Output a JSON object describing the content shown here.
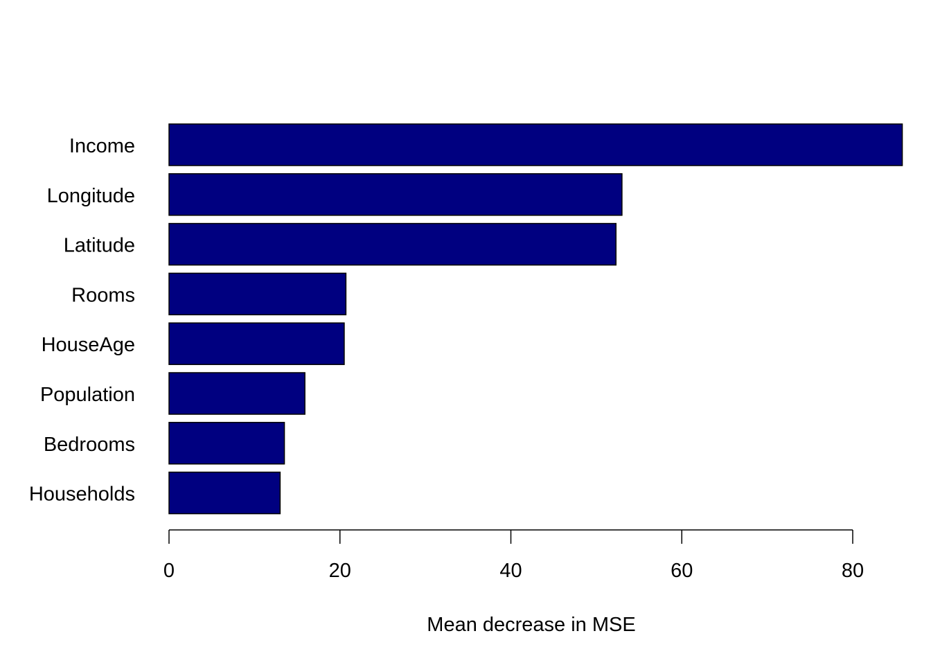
{
  "chart_data": {
    "type": "bar",
    "orientation": "horizontal",
    "categories": [
      "Income",
      "Longitude",
      "Latitude",
      "Rooms",
      "HouseAge",
      "Population",
      "Bedrooms",
      "Households"
    ],
    "values": [
      85.8,
      53.0,
      52.3,
      20.7,
      20.5,
      15.9,
      13.5,
      13.0
    ],
    "title": "",
    "xlabel": "Mean decrease in MSE",
    "ylabel": "",
    "xlim": [
      0,
      85.8
    ],
    "xticks": [
      0,
      20,
      40,
      60,
      80
    ],
    "xtick_labels": [
      "0",
      "20",
      "40",
      "60",
      "80"
    ],
    "grid": false,
    "legend": "none",
    "bar_color": "#000080",
    "bar_edge_color": "#000000"
  }
}
